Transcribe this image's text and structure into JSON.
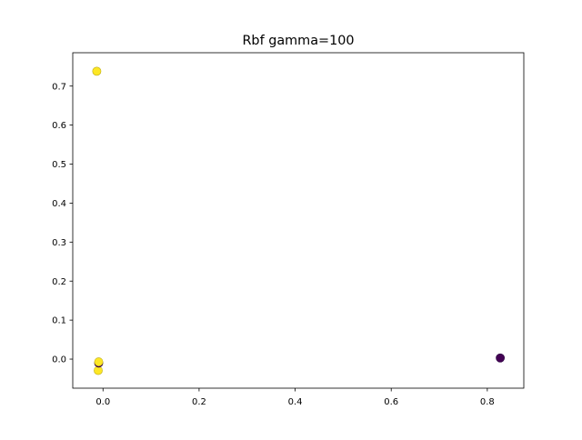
{
  "chart_data": {
    "type": "scatter",
    "title": "Rbf gamma=100",
    "xlabel": "",
    "ylabel": "",
    "xlim": [
      -0.063,
      0.876
    ],
    "ylim": [
      -0.0745,
      0.7855
    ],
    "xticks": [
      0.0,
      0.2,
      0.4,
      0.6,
      0.8
    ],
    "xtick_labels": [
      "0.0",
      "0.2",
      "0.4",
      "0.6",
      "0.8"
    ],
    "yticks": [
      0.0,
      0.1,
      0.2,
      0.3,
      0.4,
      0.5,
      0.6,
      0.7
    ],
    "ytick_labels": [
      "0.0",
      "0.1",
      "0.2",
      "0.3",
      "0.4",
      "0.5",
      "0.6",
      "0.7"
    ],
    "grid": false,
    "points": [
      {
        "x": -0.013,
        "y": 0.738,
        "class": 1,
        "color": "#fde725"
      },
      {
        "x": -0.01,
        "y": -0.029,
        "class": 1,
        "color": "#fde725"
      },
      {
        "x": -0.009,
        "y": -0.01,
        "class": 0,
        "color": "#440154"
      },
      {
        "x": -0.009,
        "y": -0.007,
        "class": 1,
        "color": "#fde725"
      },
      {
        "x": 0.827,
        "y": 0.003,
        "class": 0,
        "color": "#440154"
      }
    ]
  }
}
